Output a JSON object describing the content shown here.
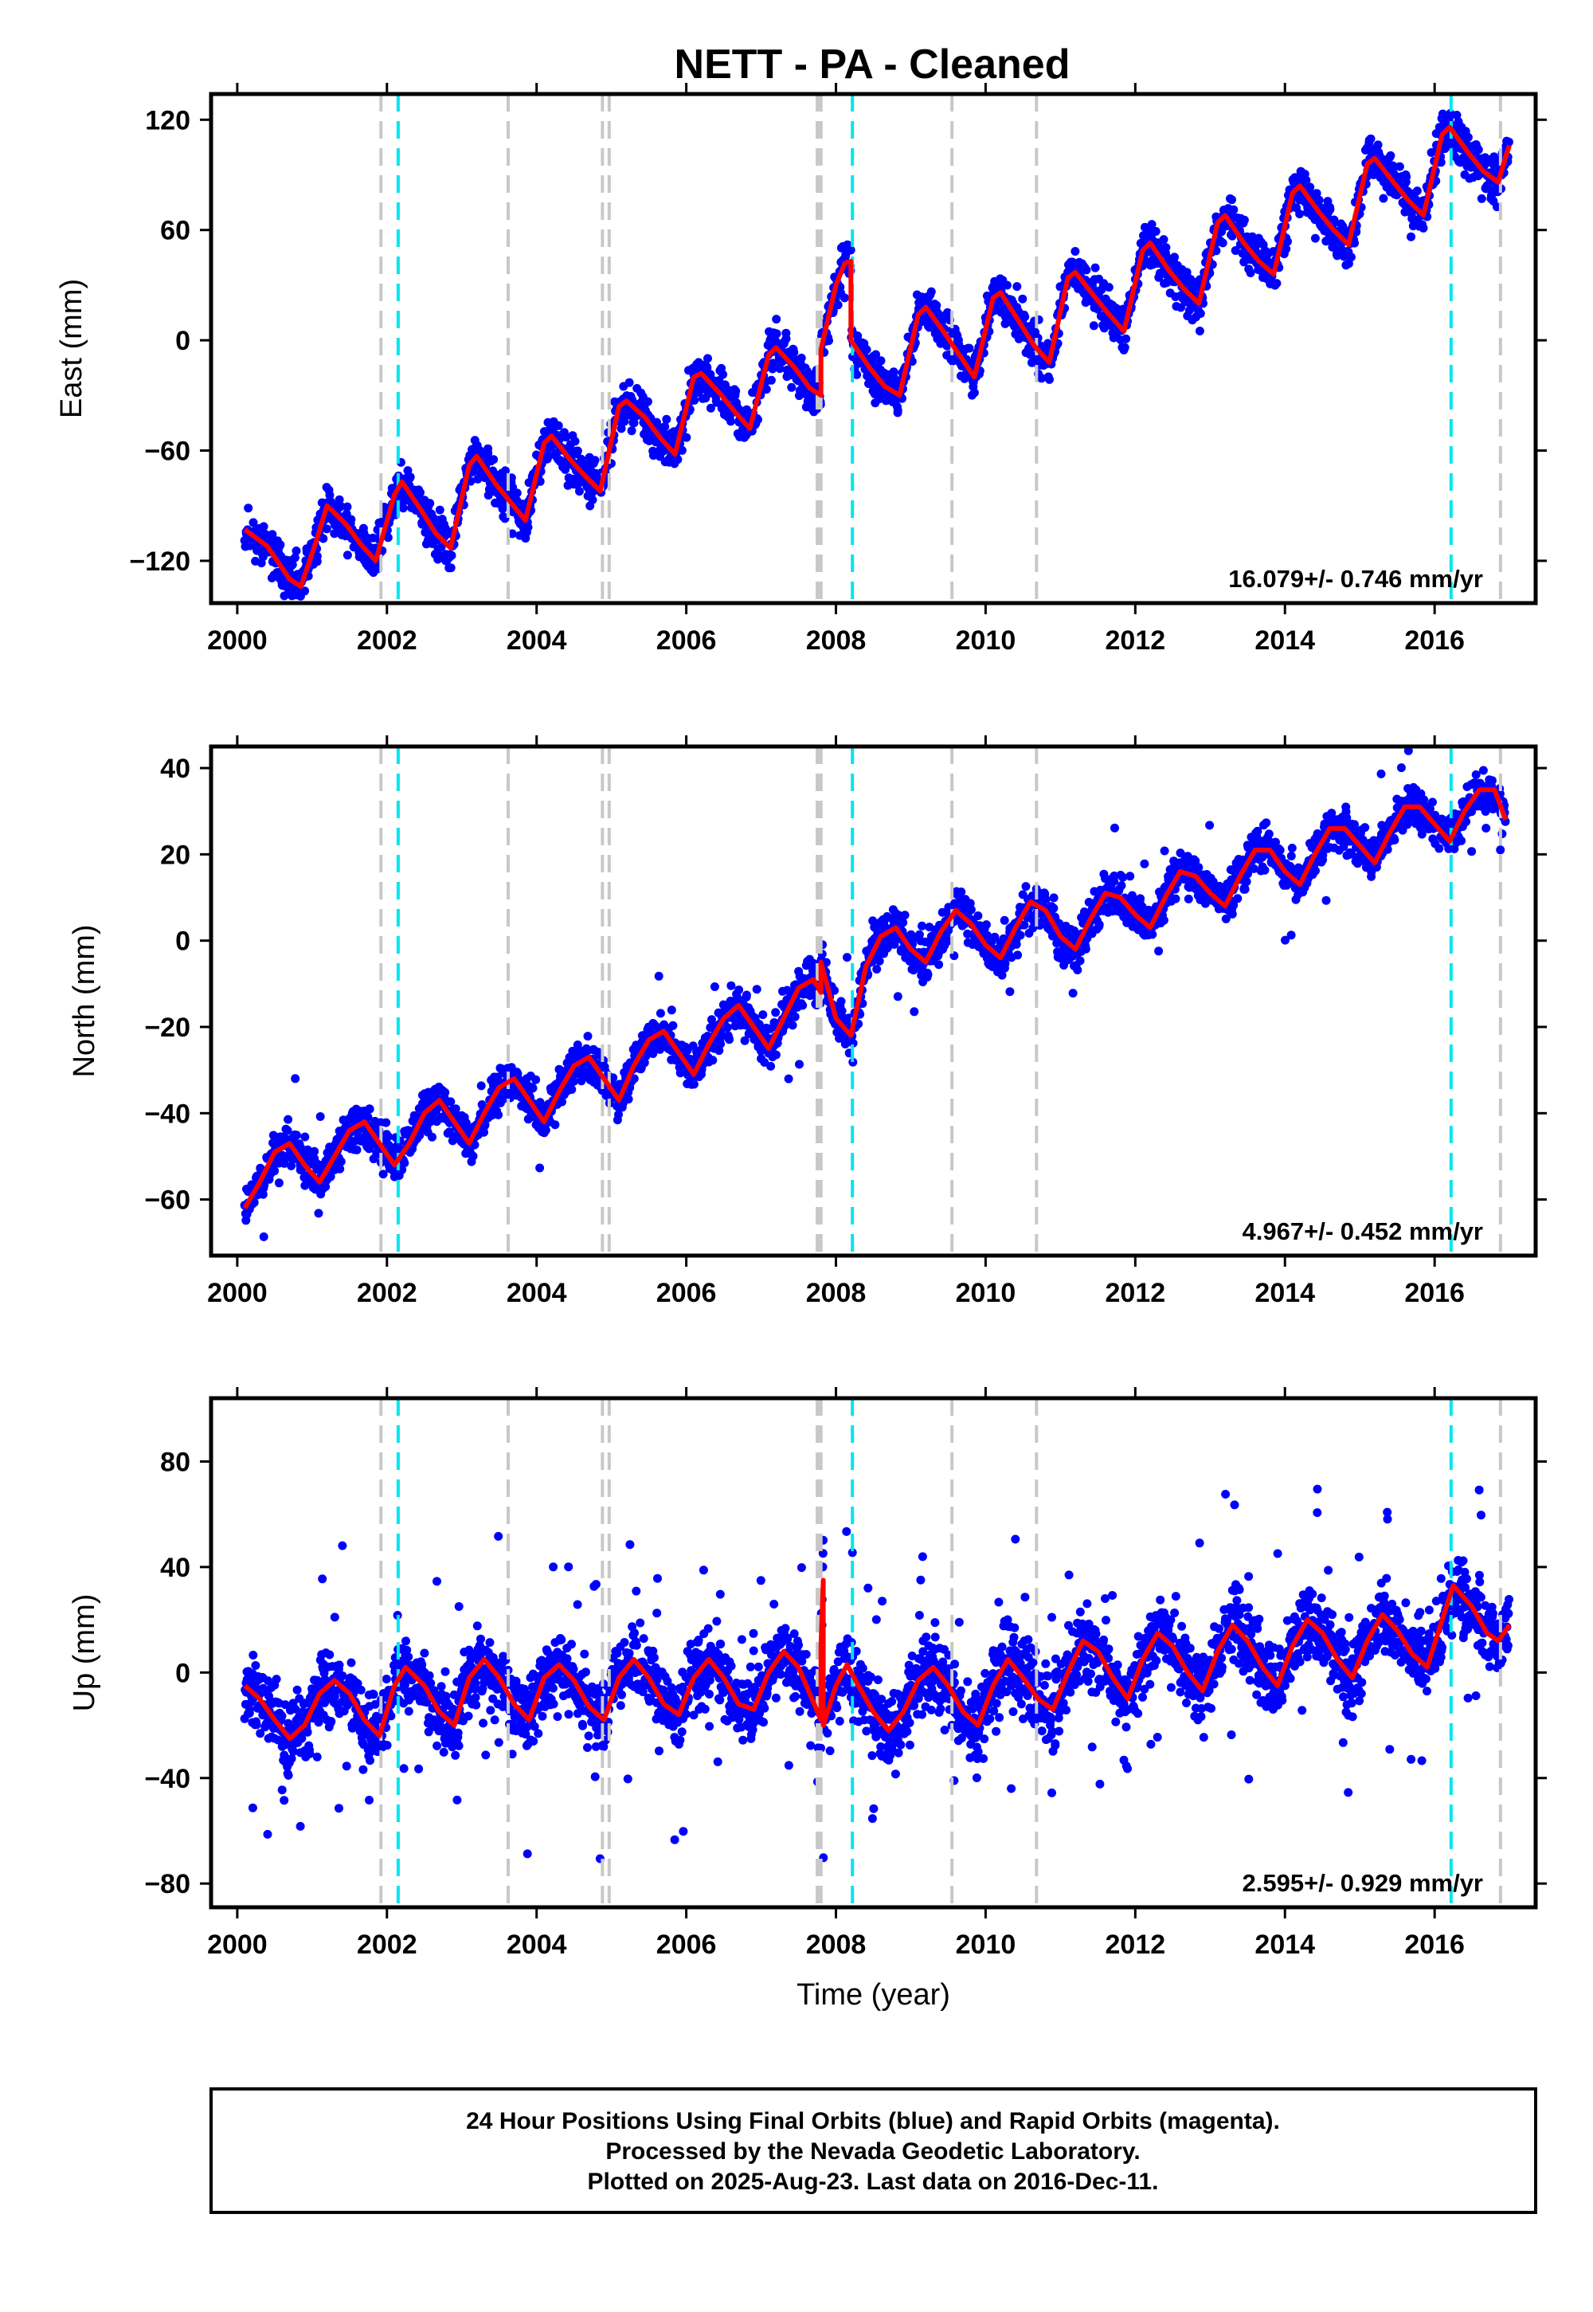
{
  "title": "NETT  - PA - Cleaned",
  "colors": {
    "data": "#0000ff",
    "model": "#ff0000",
    "antenna_change": "#c8c8c8",
    "equipment_change": "#00e5ee"
  },
  "footer": {
    "line1": "24 Hour Positions Using Final Orbits (blue) and Rapid Orbits (magenta).",
    "line2": "Processed by the Nevada Geodetic Laboratory.",
    "line3": "Plotted on 2025-Aug-23. Last data on 2016-Dec-11."
  },
  "chart_data": [
    {
      "type": "scatter",
      "component": "east",
      "ylabel": "East (mm)",
      "xlabel": "",
      "xlim": [
        1999.65,
        2017.35
      ],
      "ylim": [
        -143,
        134
      ],
      "xticks": [
        2000,
        2002,
        2004,
        2006,
        2008,
        2010,
        2012,
        2014,
        2016
      ],
      "yticks": [
        -120,
        -60,
        0,
        60,
        120
      ],
      "rate": "16.079+/- 0.746 mm/yr",
      "model": {
        "breaks": [
          2007.8,
          2008.2
        ],
        "points": [
          [
            2000.1,
            -103
          ],
          [
            2000.4,
            -112
          ],
          [
            2000.7,
            -130
          ],
          [
            2000.85,
            -134
          ],
          [
            2001.05,
            -110
          ],
          [
            2001.2,
            -90
          ],
          [
            2001.45,
            -100
          ],
          [
            2001.65,
            -111
          ],
          [
            2001.85,
            -120
          ],
          [
            2002.1,
            -84
          ],
          [
            2002.2,
            -77
          ],
          [
            2002.45,
            -92
          ],
          [
            2002.65,
            -105
          ],
          [
            2002.85,
            -113
          ],
          [
            2003.1,
            -68
          ],
          [
            2003.2,
            -63
          ],
          [
            2003.45,
            -78
          ],
          [
            2003.65,
            -88
          ],
          [
            2003.85,
            -98
          ],
          [
            2004.1,
            -56
          ],
          [
            2004.2,
            -52
          ],
          [
            2004.45,
            -65
          ],
          [
            2004.65,
            -74
          ],
          [
            2004.85,
            -82
          ],
          [
            2005.1,
            -36
          ],
          [
            2005.2,
            -33
          ],
          [
            2005.45,
            -42
          ],
          [
            2005.65,
            -53
          ],
          [
            2005.85,
            -62
          ],
          [
            2006.1,
            -20
          ],
          [
            2006.2,
            -18
          ],
          [
            2006.45,
            -29
          ],
          [
            2006.65,
            -39
          ],
          [
            2006.85,
            -48
          ],
          [
            2007.1,
            -8
          ],
          [
            2007.2,
            -4
          ],
          [
            2007.45,
            -15
          ],
          [
            2007.65,
            -26
          ],
          [
            2007.8,
            -30
          ],
          [
            2007.8,
            -5
          ],
          [
            2008.0,
            30
          ],
          [
            2008.12,
            42
          ],
          [
            2008.2,
            43
          ],
          [
            2008.2,
            0
          ],
          [
            2008.45,
            -15
          ],
          [
            2008.65,
            -25
          ],
          [
            2008.85,
            -30
          ],
          [
            2009.1,
            14
          ],
          [
            2009.2,
            18
          ],
          [
            2009.45,
            4
          ],
          [
            2009.65,
            -8
          ],
          [
            2009.85,
            -20
          ],
          [
            2010.1,
            23
          ],
          [
            2010.2,
            26
          ],
          [
            2010.45,
            10
          ],
          [
            2010.65,
            -3
          ],
          [
            2010.85,
            -12
          ],
          [
            2011.1,
            34
          ],
          [
            2011.2,
            37
          ],
          [
            2011.45,
            24
          ],
          [
            2011.65,
            14
          ],
          [
            2011.85,
            5
          ],
          [
            2012.1,
            49
          ],
          [
            2012.2,
            53
          ],
          [
            2012.45,
            38
          ],
          [
            2012.65,
            28
          ],
          [
            2012.85,
            20
          ],
          [
            2013.1,
            64
          ],
          [
            2013.2,
            68
          ],
          [
            2013.45,
            53
          ],
          [
            2013.65,
            43
          ],
          [
            2013.85,
            36
          ],
          [
            2014.1,
            80
          ],
          [
            2014.2,
            84
          ],
          [
            2014.45,
            70
          ],
          [
            2014.65,
            60
          ],
          [
            2014.85,
            52
          ],
          [
            2015.1,
            96
          ],
          [
            2015.2,
            99
          ],
          [
            2015.45,
            86
          ],
          [
            2015.65,
            76
          ],
          [
            2015.85,
            68
          ],
          [
            2016.1,
            112
          ],
          [
            2016.2,
            116
          ],
          [
            2016.45,
            102
          ],
          [
            2016.65,
            92
          ],
          [
            2016.85,
            86
          ],
          [
            2016.95,
            100
          ],
          [
            2017.0,
            106
          ]
        ]
      },
      "scatter": {
        "seed": 11,
        "count": 2800,
        "noise": 6,
        "outliers": 40,
        "outlier_range": 15
      }
    },
    {
      "type": "scatter",
      "component": "north",
      "ylabel": "North (mm)",
      "xlabel": "",
      "xlim": [
        1999.65,
        2017.35
      ],
      "ylim": [
        -73,
        45
      ],
      "xticks": [
        2000,
        2002,
        2004,
        2006,
        2008,
        2010,
        2012,
        2014,
        2016
      ],
      "yticks": [
        -60,
        -40,
        -20,
        0,
        20,
        40
      ],
      "rate": "4.967+/- 0.452 mm/yr",
      "model": {
        "breaks": [
          2007.8
        ],
        "points": [
          [
            2000.1,
            -62
          ],
          [
            2000.3,
            -56
          ],
          [
            2000.5,
            -49
          ],
          [
            2000.7,
            -47
          ],
          [
            2000.9,
            -52
          ],
          [
            2001.1,
            -56
          ],
          [
            2001.3,
            -50
          ],
          [
            2001.5,
            -44
          ],
          [
            2001.7,
            -42
          ],
          [
            2001.9,
            -47
          ],
          [
            2002.1,
            -52
          ],
          [
            2002.3,
            -47
          ],
          [
            2002.5,
            -40
          ],
          [
            2002.7,
            -37
          ],
          [
            2002.9,
            -42
          ],
          [
            2003.1,
            -47
          ],
          [
            2003.3,
            -40
          ],
          [
            2003.5,
            -34
          ],
          [
            2003.7,
            -32
          ],
          [
            2003.9,
            -37
          ],
          [
            2004.1,
            -42
          ],
          [
            2004.3,
            -35
          ],
          [
            2004.5,
            -29
          ],
          [
            2004.7,
            -27
          ],
          [
            2004.9,
            -32
          ],
          [
            2005.1,
            -37
          ],
          [
            2005.3,
            -29
          ],
          [
            2005.5,
            -23
          ],
          [
            2005.7,
            -21
          ],
          [
            2005.9,
            -26
          ],
          [
            2006.1,
            -31
          ],
          [
            2006.3,
            -24
          ],
          [
            2006.5,
            -18
          ],
          [
            2006.7,
            -15
          ],
          [
            2006.9,
            -20
          ],
          [
            2007.1,
            -25
          ],
          [
            2007.3,
            -18
          ],
          [
            2007.5,
            -11
          ],
          [
            2007.7,
            -9
          ],
          [
            2007.8,
            -12
          ],
          [
            2007.8,
            -5
          ],
          [
            2008.0,
            -18
          ],
          [
            2008.2,
            -22
          ],
          [
            2008.4,
            -6
          ],
          [
            2008.6,
            1
          ],
          [
            2008.8,
            3
          ],
          [
            2009.0,
            -2
          ],
          [
            2009.2,
            -5
          ],
          [
            2009.4,
            2
          ],
          [
            2009.6,
            7
          ],
          [
            2009.8,
            4
          ],
          [
            2010.0,
            -1
          ],
          [
            2010.2,
            -4
          ],
          [
            2010.4,
            3
          ],
          [
            2010.6,
            9
          ],
          [
            2010.8,
            7
          ],
          [
            2011.0,
            1
          ],
          [
            2011.2,
            -2
          ],
          [
            2011.4,
            5
          ],
          [
            2011.6,
            11
          ],
          [
            2011.8,
            10
          ],
          [
            2012.0,
            6
          ],
          [
            2012.2,
            3
          ],
          [
            2012.4,
            10
          ],
          [
            2012.6,
            16
          ],
          [
            2012.8,
            15
          ],
          [
            2013.0,
            11
          ],
          [
            2013.2,
            8
          ],
          [
            2013.4,
            15
          ],
          [
            2013.6,
            21
          ],
          [
            2013.8,
            21
          ],
          [
            2014.0,
            16
          ],
          [
            2014.2,
            13
          ],
          [
            2014.4,
            20
          ],
          [
            2014.6,
            26
          ],
          [
            2014.8,
            26
          ],
          [
            2015.0,
            22
          ],
          [
            2015.2,
            18
          ],
          [
            2015.4,
            25
          ],
          [
            2015.6,
            31
          ],
          [
            2015.8,
            31
          ],
          [
            2016.0,
            27
          ],
          [
            2016.2,
            23
          ],
          [
            2016.4,
            30
          ],
          [
            2016.6,
            35
          ],
          [
            2016.8,
            35
          ],
          [
            2016.95,
            28
          ]
        ]
      },
      "scatter": {
        "seed": 23,
        "count": 2800,
        "noise": 2.4,
        "outliers": 60,
        "outlier_range": 18
      }
    },
    {
      "type": "scatter",
      "component": "up",
      "ylabel": "Up (mm)",
      "xlabel": "Time (year)",
      "xlim": [
        1999.65,
        2017.35
      ],
      "ylim": [
        -89,
        104
      ],
      "xticks": [
        2000,
        2002,
        2004,
        2006,
        2008,
        2010,
        2012,
        2014,
        2016
      ],
      "yticks": [
        -80,
        -40,
        0,
        40,
        80
      ],
      "rate": "2.595+/- 0.929 mm/yr",
      "model": {
        "breaks": [
          2007.8,
          2007.83
        ],
        "points": [
          [
            2000.1,
            -5
          ],
          [
            2000.3,
            -10
          ],
          [
            2000.5,
            -18
          ],
          [
            2000.7,
            -25
          ],
          [
            2000.9,
            -20
          ],
          [
            2001.1,
            -8
          ],
          [
            2001.3,
            -3
          ],
          [
            2001.5,
            -8
          ],
          [
            2001.7,
            -18
          ],
          [
            2001.9,
            -24
          ],
          [
            2002.1,
            -5
          ],
          [
            2002.25,
            2
          ],
          [
            2002.5,
            -5
          ],
          [
            2002.7,
            -15
          ],
          [
            2002.9,
            -20
          ],
          [
            2003.1,
            -2
          ],
          [
            2003.3,
            5
          ],
          [
            2003.5,
            -2
          ],
          [
            2003.7,
            -12
          ],
          [
            2003.9,
            -18
          ],
          [
            2004.1,
            -2
          ],
          [
            2004.3,
            3
          ],
          [
            2004.5,
            -3
          ],
          [
            2004.7,
            -13
          ],
          [
            2004.9,
            -18
          ],
          [
            2005.1,
            -2
          ],
          [
            2005.3,
            5
          ],
          [
            2005.5,
            -2
          ],
          [
            2005.7,
            -12
          ],
          [
            2005.9,
            -16
          ],
          [
            2006.1,
            -2
          ],
          [
            2006.3,
            5
          ],
          [
            2006.5,
            -2
          ],
          [
            2006.7,
            -12
          ],
          [
            2006.9,
            -14
          ],
          [
            2007.1,
            0
          ],
          [
            2007.3,
            8
          ],
          [
            2007.5,
            2
          ],
          [
            2007.8,
            -18
          ],
          [
            2007.8,
            10
          ],
          [
            2007.83,
            35
          ],
          [
            2007.83,
            -20
          ],
          [
            2008.0,
            -5
          ],
          [
            2008.15,
            3
          ],
          [
            2008.3,
            -5
          ],
          [
            2008.5,
            -15
          ],
          [
            2008.7,
            -22
          ],
          [
            2008.9,
            -15
          ],
          [
            2009.1,
            -3
          ],
          [
            2009.3,
            2
          ],
          [
            2009.5,
            -5
          ],
          [
            2009.7,
            -15
          ],
          [
            2009.9,
            -20
          ],
          [
            2010.1,
            -5
          ],
          [
            2010.3,
            5
          ],
          [
            2010.5,
            -2
          ],
          [
            2010.7,
            -10
          ],
          [
            2010.9,
            -14
          ],
          [
            2011.1,
            0
          ],
          [
            2011.3,
            12
          ],
          [
            2011.5,
            8
          ],
          [
            2011.7,
            -2
          ],
          [
            2011.9,
            -10
          ],
          [
            2012.1,
            5
          ],
          [
            2012.3,
            15
          ],
          [
            2012.5,
            10
          ],
          [
            2012.7,
            0
          ],
          [
            2012.9,
            -7
          ],
          [
            2013.1,
            8
          ],
          [
            2013.3,
            18
          ],
          [
            2013.5,
            12
          ],
          [
            2013.7,
            2
          ],
          [
            2013.9,
            -5
          ],
          [
            2014.1,
            10
          ],
          [
            2014.3,
            20
          ],
          [
            2014.5,
            15
          ],
          [
            2014.7,
            5
          ],
          [
            2014.9,
            -2
          ],
          [
            2015.1,
            12
          ],
          [
            2015.3,
            22
          ],
          [
            2015.5,
            16
          ],
          [
            2015.7,
            7
          ],
          [
            2015.9,
            2
          ],
          [
            2016.1,
            20
          ],
          [
            2016.25,
            33
          ],
          [
            2016.5,
            25
          ],
          [
            2016.7,
            15
          ],
          [
            2016.85,
            12
          ],
          [
            2017.0,
            18
          ]
        ]
      },
      "scatter": {
        "seed": 37,
        "count": 3000,
        "noise": 6.5,
        "outliers": 180,
        "outlier_range": 55
      }
    }
  ],
  "events": {
    "gray": [
      2001.92,
      2003.62,
      2004.88,
      2004.97,
      2007.75,
      2007.78,
      2007.8,
      2009.55,
      2010.68,
      2016.88
    ],
    "cyan": [
      2002.15,
      2008.22,
      2016.22
    ]
  }
}
